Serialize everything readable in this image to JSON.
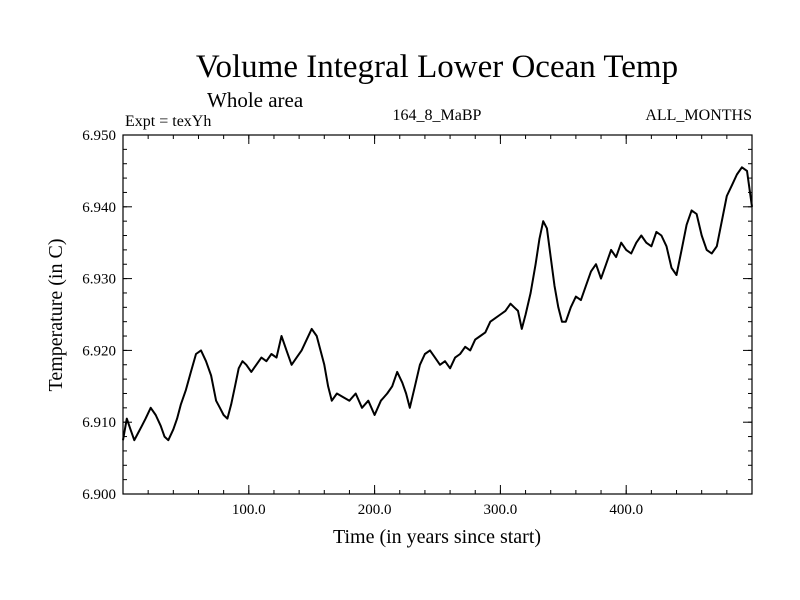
{
  "chart_data": {
    "type": "line",
    "title": "Volume Integral Lower Ocean Temp",
    "subtitle": "Whole area",
    "expt_label": "Expt = texYh",
    "run_label": "164_8_MaBP",
    "months_label": "ALL_MONTHS",
    "xlabel": "Time (in years since start)",
    "ylabel": "Temperature (in C)",
    "xlim": [
      0,
      500
    ],
    "ylim": [
      6.9,
      6.95
    ],
    "x_ticks": [
      100,
      200,
      300,
      400
    ],
    "x_tick_labels": [
      "100.0",
      "200.0",
      "300.0",
      "400.0"
    ],
    "y_ticks": [
      6.9,
      6.91,
      6.92,
      6.93,
      6.94,
      6.95
    ],
    "y_tick_labels": [
      "6.900",
      "6.910",
      "6.920",
      "6.930",
      "6.940",
      "6.950"
    ],
    "line_color": "#000000",
    "grid": false,
    "series": [
      {
        "x": [
          0,
          3,
          6,
          9,
          12,
          15,
          18,
          22,
          26,
          30,
          33,
          36,
          40,
          43,
          46,
          50,
          54,
          58,
          62,
          66,
          70,
          74,
          77,
          80,
          83,
          86,
          89,
          92,
          95,
          98,
          102,
          106,
          110,
          114,
          118,
          122,
          126,
          130,
          134,
          138,
          142,
          146,
          150,
          154,
          157,
          160,
          163,
          166,
          170,
          175,
          180,
          185,
          190,
          195,
          200,
          205,
          210,
          214,
          218,
          222,
          225,
          228,
          232,
          236,
          240,
          244,
          248,
          252,
          256,
          260,
          264,
          268,
          272,
          276,
          280,
          284,
          288,
          292,
          296,
          300,
          304,
          308,
          311,
          314,
          317,
          320,
          324,
          328,
          331,
          334,
          337,
          340,
          343,
          346,
          349,
          352,
          356,
          360,
          364,
          368,
          372,
          376,
          380,
          384,
          388,
          392,
          396,
          400,
          404,
          408,
          412,
          416,
          420,
          424,
          428,
          432,
          436,
          440,
          444,
          448,
          452,
          456,
          460,
          464,
          468,
          472,
          476,
          480,
          484,
          488,
          492,
          496,
          500
        ],
        "y": [
          6.9075,
          6.9105,
          6.909,
          6.9075,
          6.9085,
          6.9095,
          6.9105,
          6.912,
          6.911,
          6.9095,
          6.908,
          6.9075,
          6.909,
          6.9105,
          6.9125,
          6.9145,
          6.917,
          6.9195,
          6.92,
          6.9185,
          6.9165,
          6.913,
          6.912,
          6.911,
          6.9105,
          6.9125,
          6.915,
          6.9175,
          6.9185,
          6.918,
          6.917,
          6.918,
          6.919,
          6.9185,
          6.9195,
          6.919,
          6.922,
          6.92,
          6.918,
          6.919,
          6.92,
          6.9215,
          6.923,
          6.922,
          6.92,
          6.918,
          6.915,
          6.913,
          6.914,
          6.9135,
          6.913,
          6.914,
          6.912,
          6.913,
          6.911,
          6.913,
          6.914,
          6.915,
          6.917,
          6.9155,
          6.914,
          6.912,
          6.915,
          6.918,
          6.9195,
          6.92,
          6.919,
          6.918,
          6.9185,
          6.9175,
          6.919,
          6.9195,
          6.9205,
          6.92,
          6.9215,
          6.922,
          6.9225,
          6.924,
          6.9245,
          6.925,
          6.9255,
          6.9265,
          6.926,
          6.9255,
          6.923,
          6.925,
          6.928,
          6.932,
          6.9355,
          6.938,
          6.937,
          6.933,
          6.929,
          6.926,
          6.924,
          6.924,
          6.926,
          6.9275,
          6.927,
          6.929,
          6.931,
          6.932,
          6.93,
          6.932,
          6.934,
          6.933,
          6.935,
          6.934,
          6.9335,
          6.935,
          6.936,
          6.935,
          6.9345,
          6.9365,
          6.936,
          6.9345,
          6.9315,
          6.9305,
          6.934,
          6.9375,
          6.9395,
          6.939,
          6.936,
          6.934,
          6.9335,
          6.9345,
          6.938,
          6.9415,
          6.943,
          6.9445,
          6.9455,
          6.945,
          6.94
        ]
      }
    ]
  }
}
